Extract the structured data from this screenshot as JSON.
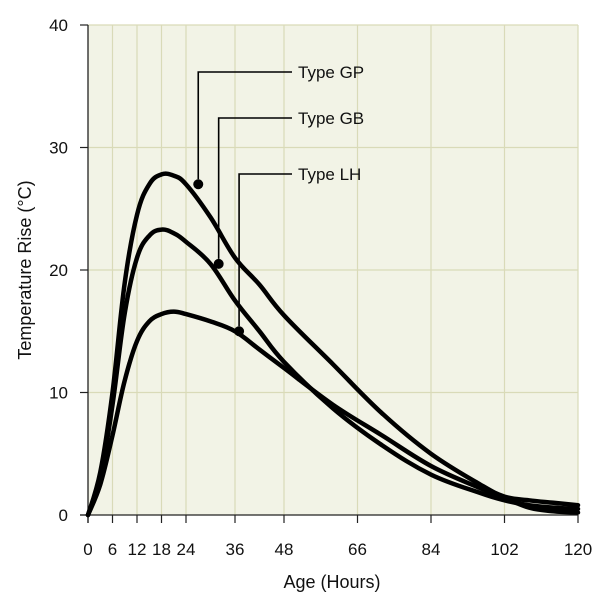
{
  "chart_data": {
    "type": "line",
    "title": "",
    "xlabel": "Age (Hours)",
    "ylabel": "Temperature Rise (°C)",
    "xlim": [
      0,
      120
    ],
    "ylim": [
      0,
      40
    ],
    "x_ticks": [
      0,
      6,
      12,
      18,
      24,
      36,
      48,
      66,
      84,
      102,
      120
    ],
    "x_tick_labels": [
      "0",
      "6",
      "12",
      "18",
      "24",
      "36",
      "48",
      "66",
      "84",
      "102",
      "120"
    ],
    "y_ticks": [
      0,
      10,
      20,
      30,
      40
    ],
    "y_tick_labels": [
      "0",
      "10",
      "20",
      "30",
      "40"
    ],
    "grid": true,
    "plot_background": "#f2f3e6",
    "grid_color": "#d9dab8",
    "line_color": "#000000",
    "series": [
      {
        "name": "Type GP",
        "x": [
          0,
          3,
          6,
          9,
          12,
          15,
          18,
          21,
          24,
          30,
          36,
          42,
          48,
          60,
          72,
          84,
          96,
          102,
          108,
          114,
          120
        ],
        "y": [
          0,
          3.5,
          10,
          19,
          24.5,
          27,
          27.8,
          27.7,
          27,
          24.3,
          21,
          18.8,
          16.3,
          12.3,
          8.3,
          5,
          2.5,
          1.5,
          1.2,
          1,
          0.8
        ],
        "marker_x": 27,
        "marker_y": 27
      },
      {
        "name": "Type GB",
        "x": [
          0,
          3,
          6,
          9,
          12,
          15,
          18,
          21,
          24,
          30,
          36,
          42,
          48,
          60,
          72,
          84,
          96,
          102,
          108,
          114,
          120
        ],
        "y": [
          0,
          3,
          9,
          16.5,
          21,
          22.8,
          23.3,
          23,
          22.3,
          20.5,
          17.5,
          15,
          12.5,
          8.7,
          5.7,
          3.3,
          1.8,
          1.2,
          0.8,
          0.6,
          0.5
        ],
        "marker_x": 32,
        "marker_y": 20.5
      },
      {
        "name": "Type LH",
        "x": [
          0,
          3,
          6,
          9,
          12,
          15,
          18,
          21,
          24,
          30,
          36,
          42,
          48,
          60,
          72,
          84,
          96,
          102,
          108,
          114,
          120
        ],
        "y": [
          0,
          2.5,
          6.5,
          11,
          14.2,
          15.8,
          16.4,
          16.6,
          16.4,
          15.8,
          15,
          13.5,
          12,
          9,
          6.5,
          4,
          2.2,
          1.4,
          0.6,
          0.3,
          0.2
        ],
        "marker_x": 37,
        "marker_y": 15
      }
    ]
  }
}
